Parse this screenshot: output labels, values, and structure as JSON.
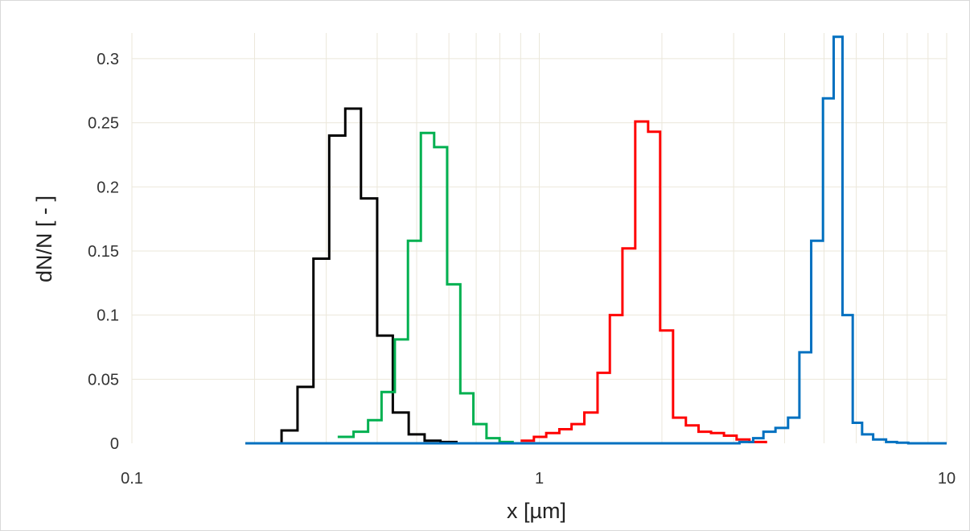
{
  "chart_data": {
    "type": "line",
    "step": true,
    "title": "",
    "xlabel": "x [µm]",
    "ylabel": "dN/N [ - ]",
    "xscale": "log",
    "xlim": [
      0.1,
      10
    ],
    "ylim": [
      0,
      0.32
    ],
    "grid": true,
    "x_ticks": [
      {
        "value": 0.1,
        "label": "0.1"
      },
      {
        "value": 1,
        "label": "1"
      },
      {
        "value": 10,
        "label": "10"
      }
    ],
    "y_ticks": [
      {
        "value": 0,
        "label": "0"
      },
      {
        "value": 0.05,
        "label": "0.05"
      },
      {
        "value": 0.1,
        "label": "0.1"
      },
      {
        "value": 0.15,
        "label": "0.15"
      },
      {
        "value": 0.2,
        "label": "0.2"
      },
      {
        "value": 0.25,
        "label": "0.25"
      },
      {
        "value": 0.3,
        "label": "0.3"
      }
    ],
    "series": [
      {
        "color": "#000000",
        "x": [
          0.19,
          0.233,
          0.255,
          0.279,
          0.305,
          0.334,
          0.365,
          0.4,
          0.437,
          0.478,
          0.523,
          0.572,
          0.626
        ],
        "y": [
          0,
          0.01,
          0.044,
          0.144,
          0.24,
          0.261,
          0.191,
          0.084,
          0.024,
          0.007,
          0.002,
          0.001,
          0.0
        ]
      },
      {
        "color": "#00b050",
        "x": [
          0.32,
          0.35,
          0.38,
          0.41,
          0.442,
          0.476,
          0.512,
          0.552,
          0.594,
          0.64,
          0.689,
          0.742,
          0.799,
          0.86
        ],
        "y": [
          0.005,
          0.009,
          0.018,
          0.04,
          0.081,
          0.158,
          0.242,
          0.231,
          0.124,
          0.039,
          0.015,
          0.004,
          0.001,
          0.0
        ]
      },
      {
        "color": "#ff0000",
        "x": [
          0.9,
          0.97,
          1.04,
          1.12,
          1.2,
          1.29,
          1.39,
          1.49,
          1.6,
          1.72,
          1.85,
          1.98,
          2.13,
          2.29,
          2.46,
          2.64,
          2.84,
          3.05,
          3.28,
          3.6
        ],
        "y": [
          0.002,
          0.005,
          0.008,
          0.011,
          0.015,
          0.024,
          0.055,
          0.1,
          0.152,
          0.251,
          0.243,
          0.088,
          0.02,
          0.014,
          0.009,
          0.008,
          0.006,
          0.003,
          0.001,
          0.0
        ]
      },
      {
        "color": "#0070c0",
        "x": [
          0.19,
          2.9,
          3.1,
          3.35,
          3.55,
          3.8,
          4.08,
          4.35,
          4.65,
          4.97,
          5.28,
          5.55,
          5.88,
          6.2,
          6.6,
          7.1,
          7.55,
          8.05,
          10
        ],
        "y": [
          0,
          0.0,
          0.001,
          0.004,
          0.009,
          0.012,
          0.02,
          0.071,
          0.158,
          0.269,
          0.317,
          0.1,
          0.016,
          0.007,
          0.003,
          0.001,
          0.0005,
          0.0,
          0
        ]
      }
    ]
  }
}
